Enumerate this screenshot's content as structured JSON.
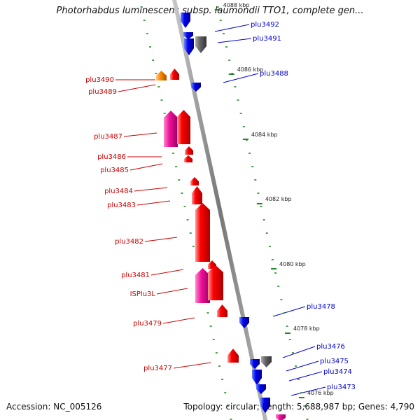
{
  "header": {
    "title": "Photorhabdus luminescens subsp. laumondii TTO1, complete gen..."
  },
  "footer": {
    "accession": "Accession: NC_005126",
    "summary": "Topology: circular; Length: 5,688,987 bp; Genes: 4,790"
  },
  "kbp_marks": [
    "4088 kbp",
    "4086 kbp",
    "4084 kbp",
    "4082 kbp",
    "4080 kbp",
    "4078 kbp",
    "4076 kbp"
  ],
  "labels_left": [
    "plu3490",
    "plu3489",
    "plu3487",
    "plu3486",
    "plu3485",
    "plu3484",
    "plu3483",
    "plu3482",
    "plu3481",
    "ISPlu3L",
    "plu3479",
    "plu3477"
  ],
  "labels_right": [
    "plu3492",
    "plu3491",
    "plu3488",
    "plu3478",
    "plu3476",
    "plu3475",
    "plu3474",
    "plu3473"
  ],
  "colors": {
    "forward_gene": "#ff0000",
    "forward_gene_alt": "#ee1199",
    "reverse_gene": "#0000ee",
    "pseudo_gene": "#666666",
    "other_gene": "#ff8800",
    "tick": "#228822",
    "backbone": "#888888",
    "left_label": "#cc0000",
    "right_label": "#0000cc"
  }
}
